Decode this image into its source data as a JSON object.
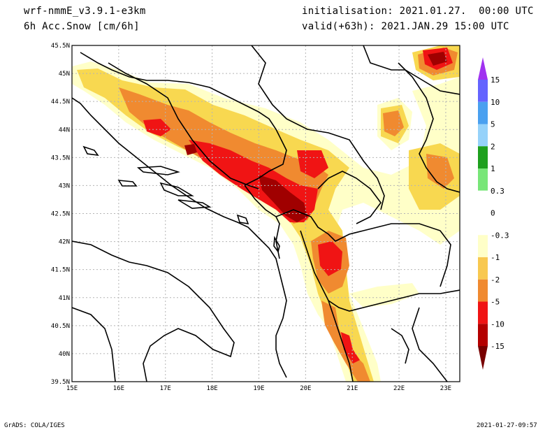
{
  "header": {
    "model": "wrf-nmmE_v3.9.1-e3km",
    "field": "6h Acc.Snow [cm/6h]",
    "initialisation": "initialisation: 2021.01.27.  00:00 UTC",
    "valid": "valid(+63h): 2021.JAN.29 15:00 UTC"
  },
  "footer": {
    "left": "GrADS: COLA/IGES",
    "right": "2021-01-27-09:57"
  },
  "map": {
    "lon_labels": [
      "15E",
      "16E",
      "17E",
      "18E",
      "19E",
      "20E",
      "21E",
      "22E",
      "23E"
    ],
    "lat_labels": [
      "45.5N",
      "45N",
      "44.5N",
      "44N",
      "43.5N",
      "43N",
      "42.5N",
      "42N",
      "41.5N",
      "41N",
      "40.5N",
      "40N",
      "39.5N"
    ],
    "colors": {
      "c_lt_yellow": "#ffffc8",
      "c_yellow": "#f8d850",
      "c_orange": "#f08a30",
      "c_red": "#f01414",
      "c_dkred": "#a00000",
      "boundary": "#000000",
      "grid": "#b4b4b4"
    }
  },
  "colorbar": {
    "labels": [
      "15",
      "10",
      "5",
      "2",
      "1",
      "0.3",
      "0",
      "-0.3",
      "-1",
      "-2",
      "-5",
      "-10",
      "-15"
    ],
    "colors": [
      "#6464ff",
      "#4aa0f0",
      "#96d2fa",
      "#1ea01e",
      "#78e678",
      "#ffffff",
      "#ffffff",
      "#ffffc8",
      "#f8c850",
      "#f08a30",
      "#f01414",
      "#b40000"
    ],
    "top_arrow_color": "#a032f0",
    "bottom_arrow_color": "#780000"
  }
}
